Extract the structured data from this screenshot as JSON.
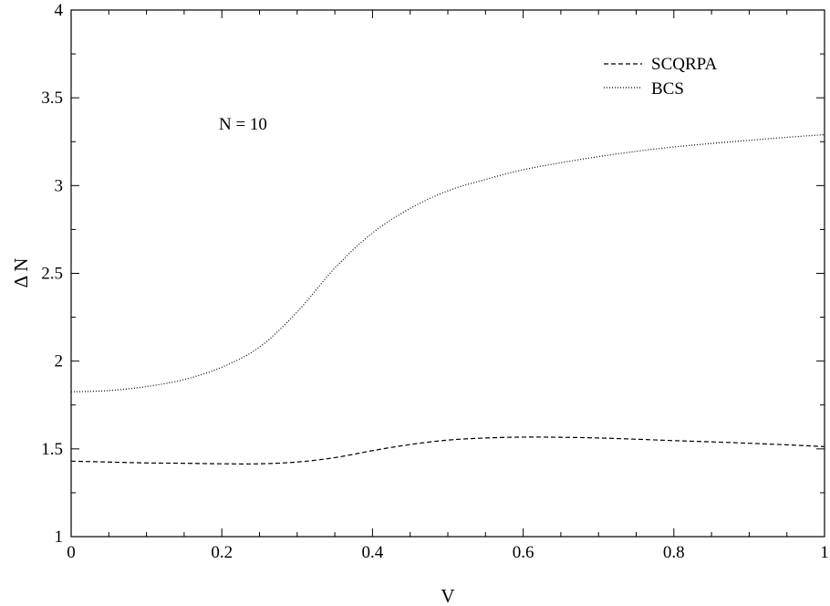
{
  "chart_data": {
    "type": "line",
    "title": "",
    "xlabel": "V",
    "ylabel": "Δ N",
    "xlim": [
      0,
      1
    ],
    "ylim": [
      1,
      4
    ],
    "x_ticks": [
      0,
      0.2,
      0.4,
      0.6,
      0.8,
      1
    ],
    "y_ticks": [
      1,
      1.5,
      2,
      2.5,
      3,
      3.5,
      4
    ],
    "x_tick_labels": [
      "0",
      "0.2",
      "0.4",
      "0.6",
      "0.8",
      "1"
    ],
    "y_tick_labels": [
      "1",
      "1.5",
      "2",
      "2.5",
      "3",
      "3.5",
      "4"
    ],
    "grid": false,
    "legend_position": "top-right",
    "annotation": "N = 10",
    "x": [
      0,
      0.05,
      0.1,
      0.15,
      0.2,
      0.25,
      0.3,
      0.35,
      0.4,
      0.45,
      0.5,
      0.55,
      0.6,
      0.65,
      0.7,
      0.75,
      0.8,
      0.85,
      0.9,
      0.95,
      1.0
    ],
    "series": [
      {
        "name": "SCQRPA",
        "style": "dashed",
        "values": [
          1.43,
          1.425,
          1.42,
          1.418,
          1.415,
          1.415,
          1.425,
          1.45,
          1.49,
          1.525,
          1.55,
          1.562,
          1.567,
          1.566,
          1.562,
          1.555,
          1.547,
          1.54,
          1.532,
          1.523,
          1.513
        ]
      },
      {
        "name": "BCS",
        "style": "dotted",
        "values": [
          1.825,
          1.832,
          1.855,
          1.895,
          1.965,
          2.08,
          2.28,
          2.53,
          2.73,
          2.87,
          2.97,
          3.035,
          3.09,
          3.13,
          3.165,
          3.195,
          3.22,
          3.24,
          3.258,
          3.275,
          3.29
        ]
      }
    ]
  }
}
